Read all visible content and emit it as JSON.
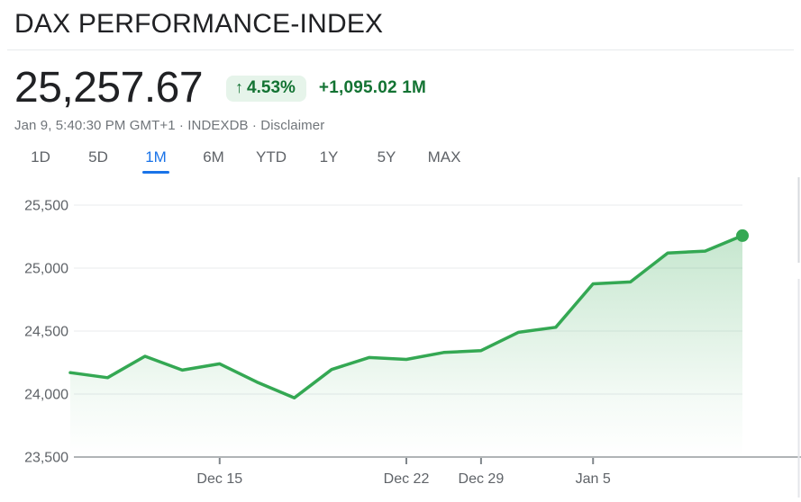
{
  "header": {
    "title": "DAX PERFORMANCE-INDEX"
  },
  "quote": {
    "price": "25,257.67",
    "change_arrow": "↑",
    "change_percent": "4.53%",
    "change_absolute": "+1,095.02 1M",
    "timestamp_prefix": "Jan 9, 5:40:30 PM GMT+1 · INDEXDB ·",
    "disclaimer_label": "Disclaimer"
  },
  "range_tabs": {
    "items": [
      {
        "label": "1D",
        "active": false
      },
      {
        "label": "5D",
        "active": false
      },
      {
        "label": "1M",
        "active": true
      },
      {
        "label": "6M",
        "active": false
      },
      {
        "label": "YTD",
        "active": false
      },
      {
        "label": "1Y",
        "active": false
      },
      {
        "label": "5Y",
        "active": false
      },
      {
        "label": "MAX",
        "active": false
      }
    ]
  },
  "colors": {
    "positive_text": "#137333",
    "positive_badge_bg": "#e6f4ea",
    "active_tab": "#1a73e8",
    "line_green": "#34a853",
    "axis_text": "#5f6368",
    "gridline": "#e9ebee",
    "baseline": "#80868b"
  },
  "chart_data": {
    "type": "area",
    "title": "DAX PERFORMANCE-INDEX 1M price history",
    "x": [
      "Dec 9",
      "Dec 10",
      "Dec 11",
      "Dec 12",
      "Dec 15",
      "Dec 16",
      "Dec 17",
      "Dec 18",
      "Dec 19",
      "Dec 22",
      "Dec 23",
      "Dec 29",
      "Dec 30",
      "Jan 2",
      "Jan 5",
      "Jan 6",
      "Jan 7",
      "Jan 8",
      "Jan 9"
    ],
    "values": [
      24170,
      24130,
      24300,
      24190,
      24240,
      24095,
      23970,
      24195,
      24290,
      24275,
      24330,
      24345,
      24490,
      24530,
      24875,
      24890,
      25120,
      25135,
      25257.67
    ],
    "x_tick_labels": [
      {
        "label": "Dec 15",
        "index": 4
      },
      {
        "label": "Dec 22",
        "index": 9
      },
      {
        "label": "Dec 29",
        "index": 11
      },
      {
        "label": "Jan 5",
        "index": 14
      }
    ],
    "y_ticks": [
      {
        "label": "23,500",
        "value": 23500
      },
      {
        "label": "24,000",
        "value": 24000
      },
      {
        "label": "24,500",
        "value": 24500
      },
      {
        "label": "25,000",
        "value": 25000
      },
      {
        "label": "25,500",
        "value": 25500
      }
    ],
    "ylim": [
      23500,
      25500
    ],
    "grid": true,
    "legend": "none",
    "endpoint_dot": true,
    "last_value": 25257.67
  }
}
